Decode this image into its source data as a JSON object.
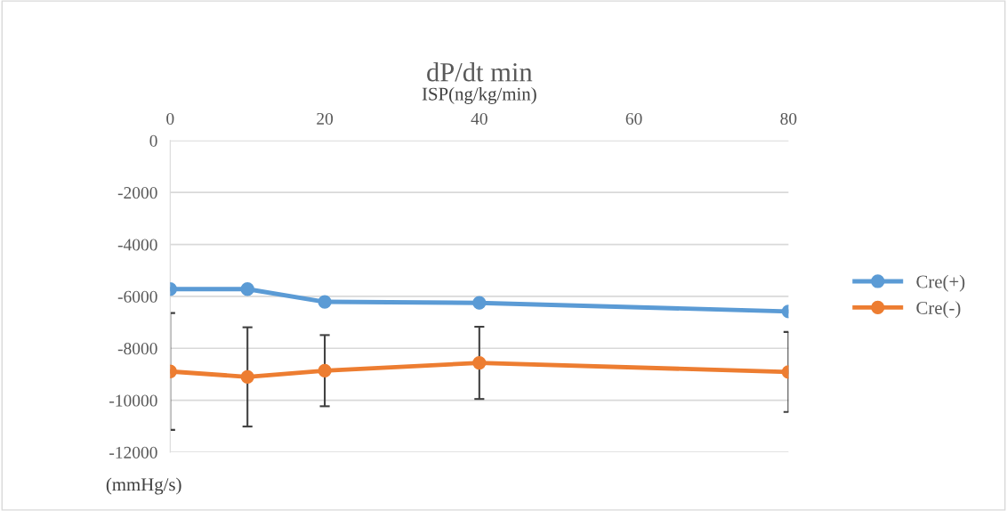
{
  "chart_data": {
    "type": "line",
    "title": "dP/dt min",
    "xlabel": "ISP(ng/kg/min)",
    "ylabel": "(mmHg/s)",
    "x": [
      0,
      10,
      20,
      40,
      80
    ],
    "series": [
      {
        "name": "Cre(+)",
        "color": "#5b9bd5",
        "values": [
          -5720,
          -5720,
          -6210,
          -6250,
          -6580
        ]
      },
      {
        "name": "Cre(-)",
        "color": "#ed7d31",
        "values": [
          -8890,
          -9100,
          -8860,
          -8560,
          -8910
        ],
        "errors": [
          2250,
          1910,
          1370,
          1390,
          1540
        ]
      }
    ],
    "xlim": [
      0,
      80
    ],
    "xticks": [
      0,
      20,
      40,
      60,
      80
    ],
    "ylim": [
      -12000,
      0
    ],
    "yticks": [
      -12000,
      -10000,
      -8000,
      -6000,
      -4000,
      -2000,
      0
    ],
    "grid": "y",
    "legend": "right",
    "marker": "circle",
    "line_style": "solid"
  }
}
